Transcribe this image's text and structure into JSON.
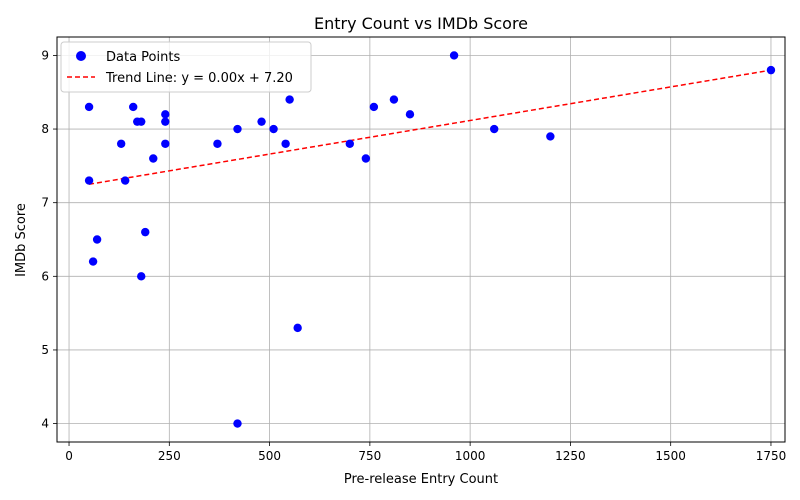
{
  "chart_data": {
    "type": "scatter",
    "title": "Entry Count vs IMDb Score",
    "xlabel": "Pre-release Entry Count",
    "ylabel": "IMDb Score",
    "xlim": [
      -30,
      1785
    ],
    "ylim": [
      3.75,
      9.25
    ],
    "xticks": [
      0,
      250,
      500,
      750,
      1000,
      1250,
      1500,
      1750
    ],
    "yticks": [
      4,
      5,
      6,
      7,
      8,
      9
    ],
    "grid": true,
    "legend_position": "top-left",
    "series": [
      {
        "name": "Data Points",
        "type": "scatter",
        "color": "#0000ff",
        "points": [
          [
            50,
            8.3
          ],
          [
            50,
            7.3
          ],
          [
            60,
            6.2
          ],
          [
            70,
            6.5
          ],
          [
            130,
            7.8
          ],
          [
            140,
            7.3
          ],
          [
            160,
            8.3
          ],
          [
            170,
            8.1
          ],
          [
            180,
            8.1
          ],
          [
            180,
            6.0
          ],
          [
            190,
            6.6
          ],
          [
            210,
            7.6
          ],
          [
            240,
            8.2
          ],
          [
            240,
            8.1
          ],
          [
            240,
            7.8
          ],
          [
            370,
            7.8
          ],
          [
            420,
            8.0
          ],
          [
            420,
            4.0
          ],
          [
            480,
            8.1
          ],
          [
            510,
            8.0
          ],
          [
            540,
            7.8
          ],
          [
            550,
            8.4
          ],
          [
            570,
            5.3
          ],
          [
            700,
            7.8
          ],
          [
            740,
            7.6
          ],
          [
            760,
            8.3
          ],
          [
            810,
            8.4
          ],
          [
            850,
            8.2
          ],
          [
            960,
            9.0
          ],
          [
            1060,
            8.0
          ],
          [
            1200,
            7.9
          ],
          [
            1750,
            8.8
          ]
        ]
      },
      {
        "name": "Trend Line: y = 0.00x + 7.20",
        "type": "line",
        "color": "#ff0000",
        "style": "dashed",
        "points": [
          [
            50,
            7.25
          ],
          [
            1750,
            8.8
          ]
        ]
      }
    ]
  }
}
